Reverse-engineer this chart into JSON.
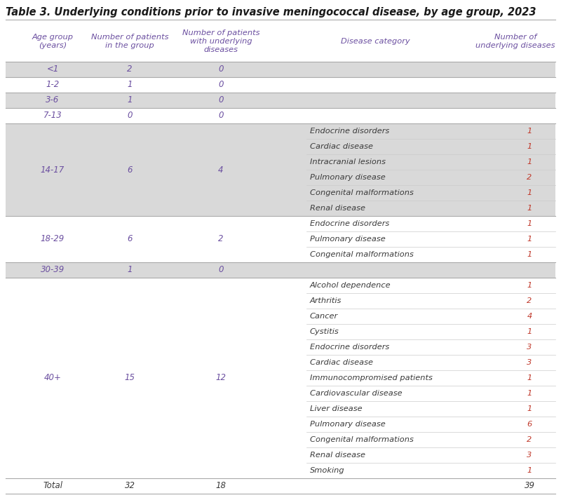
{
  "title": "Table 3. Underlying conditions prior to invasive meningococcal disease, by age group, 2023",
  "title_color": "#1a1a1a",
  "title_fontsize": 10.5,
  "col_headers": [
    "Age group\n(years)",
    "Number of patients\nin the group",
    "Number of patients\nwith underlying\ndiseases",
    "Disease category",
    "Number of\nunderlying diseases"
  ],
  "header_color": "#6b4fa0",
  "rows": [
    {
      "age": "<1",
      "n_group": "2",
      "n_underlying": "0",
      "diseases": [],
      "bg": "light"
    },
    {
      "age": "1-2",
      "n_group": "1",
      "n_underlying": "0",
      "diseases": [],
      "bg": "white"
    },
    {
      "age": "3-6",
      "n_group": "1",
      "n_underlying": "0",
      "diseases": [],
      "bg": "light"
    },
    {
      "age": "7-13",
      "n_group": "0",
      "n_underlying": "0",
      "diseases": [],
      "bg": "white"
    },
    {
      "age": "14-17",
      "n_group": "6",
      "n_underlying": "4",
      "diseases": [
        {
          "name": "Endocrine disorders",
          "count": "1"
        },
        {
          "name": "Cardiac disease",
          "count": "1"
        },
        {
          "name": "Intracranial lesions",
          "count": "1"
        },
        {
          "name": "Pulmonary disease",
          "count": "2"
        },
        {
          "name": "Congenital malformations",
          "count": "1"
        },
        {
          "name": "Renal disease",
          "count": "1"
        }
      ],
      "bg": "light"
    },
    {
      "age": "18-29",
      "n_group": "6",
      "n_underlying": "2",
      "diseases": [
        {
          "name": "Endocrine disorders",
          "count": "1"
        },
        {
          "name": "Pulmonary disease",
          "count": "1"
        },
        {
          "name": "Congenital malformations",
          "count": "1"
        }
      ],
      "bg": "white"
    },
    {
      "age": "30-39",
      "n_group": "1",
      "n_underlying": "0",
      "diseases": [],
      "bg": "light"
    },
    {
      "age": "40+",
      "n_group": "15",
      "n_underlying": "12",
      "diseases": [
        {
          "name": "Alcohol dependence",
          "count": "1"
        },
        {
          "name": "Arthritis",
          "count": "2"
        },
        {
          "name": "Cancer",
          "count": "4"
        },
        {
          "name": "Cystitis",
          "count": "1"
        },
        {
          "name": "Endocrine disorders",
          "count": "3"
        },
        {
          "name": "Cardiac disease",
          "count": "3"
        },
        {
          "name": "Immunocompromised patients",
          "count": "1"
        },
        {
          "name": "Cardiovascular disease",
          "count": "1"
        },
        {
          "name": "Liver disease",
          "count": "1"
        },
        {
          "name": "Pulmonary disease",
          "count": "6"
        },
        {
          "name": "Congenital malformations",
          "count": "2"
        },
        {
          "name": "Renal disease",
          "count": "3"
        },
        {
          "name": "Smoking",
          "count": "1"
        }
      ],
      "bg": "white"
    },
    {
      "age": "Total",
      "n_group": "32",
      "n_underlying": "18",
      "diseases": [],
      "bg": "white",
      "total": true
    }
  ],
  "bg_light": "#d9d9d9",
  "bg_white": "#ffffff",
  "text_dark": "#3a3a3a",
  "text_purple": "#6b4fa0",
  "text_red": "#c0392b",
  "total_count": "39",
  "fig_w": 8.0,
  "fig_h": 7.13,
  "dpi": 100
}
